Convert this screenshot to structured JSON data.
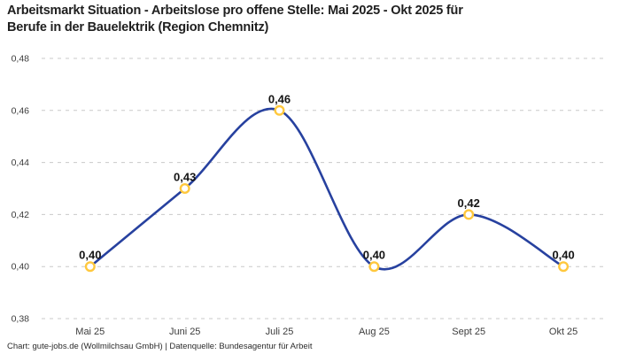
{
  "header": {
    "title": "Arbeitsmarkt Situation - Arbeitslose pro offene Stelle: Mai 2025 - Okt 2025 für Berufe in der Bauelektrik (Region Chemnitz)",
    "title_lines": [
      "Arbeitsmarkt Situation - Arbeitslose pro offene Stelle: Mai 2025 - Okt 2025 für",
      "Berufe in der Bauelektrik (Region Chemnitz)"
    ]
  },
  "footer": {
    "credit": "Chart: gute-jobs.de (Wollmilchsau GmbH) | Datenquelle: Bundesagentur für Arbeit"
  },
  "chart_data": {
    "type": "line",
    "title": "Arbeitsmarkt Situation - Arbeitslose pro offene Stelle: Mai 2025 - Okt 2025 für Berufe in der Bauelektrik (Region Chemnitz)",
    "categories": [
      "Mai 25",
      "Juni 25",
      "Juli 25",
      "Aug 25",
      "Sept 25",
      "Okt 25"
    ],
    "values": [
      0.4,
      0.43,
      0.46,
      0.4,
      0.42,
      0.4
    ],
    "point_labels": [
      "0,40",
      "0,43",
      "0,46",
      "0,40",
      "0,42",
      "0,40"
    ],
    "y_ticks": [
      0.38,
      0.4,
      0.42,
      0.44,
      0.46,
      0.48
    ],
    "y_tick_labels": [
      "0,38",
      "0,40",
      "0,42",
      "0,44",
      "0,46",
      "0,48"
    ],
    "ylim": [
      0.38,
      0.48
    ],
    "xlabel": "",
    "ylabel": "",
    "grid": "horizontal-dashed",
    "legend": "none",
    "line_style": "smooth",
    "colors": {
      "line": "#27419f",
      "marker_ring": "#ffc83d",
      "marker_fill": "#ffffff",
      "grid": "#c9c9c9",
      "point_label": "#141414",
      "tick_label": "#3c3c3c"
    }
  }
}
